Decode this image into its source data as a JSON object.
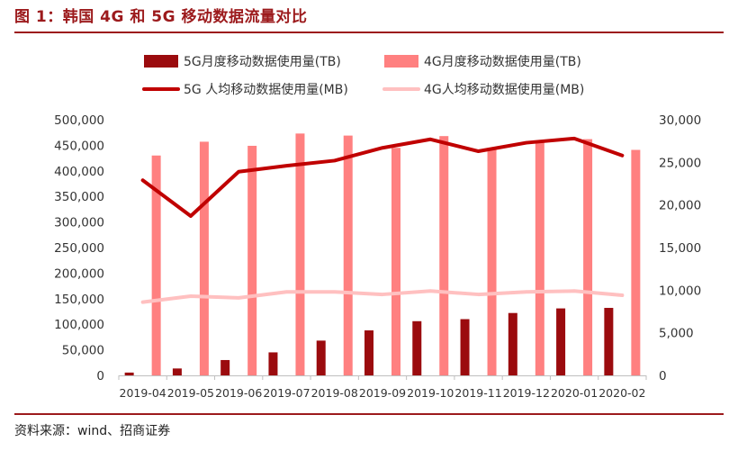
{
  "figure": {
    "title": "图 1：韩国 4G 和 5G 移动数据流量对比",
    "source": "资料来源：wind、招商证券"
  },
  "chart_data": {
    "type": "bar",
    "categories": [
      "2019-04",
      "2019-05",
      "2019-06",
      "2019-07",
      "2019-08",
      "2019-09",
      "2019-10",
      "2019-11",
      "2019-12",
      "2020-01",
      "2020-02"
    ],
    "y_left": {
      "min": 0,
      "max": 500000,
      "step": 50000,
      "ticks": [
        "0",
        "50,000",
        "100,000",
        "150,000",
        "200,000",
        "250,000",
        "300,000",
        "350,000",
        "400,000",
        "450,000",
        "500,000"
      ]
    },
    "y_right": {
      "min": 0,
      "max": 30000,
      "step": 5000,
      "ticks": [
        "0",
        "5,000",
        "10,000",
        "15,000",
        "20,000",
        "25,000",
        "30,000"
      ]
    },
    "grid": false,
    "legend_position": "top",
    "series": [
      {
        "name": "5G月度移动数据使用量(TB)",
        "kind": "bar",
        "axis": "left",
        "color": "#9B0B0E",
        "values": [
          5500,
          13500,
          30000,
          45000,
          68000,
          88000,
          106000,
          110000,
          122000,
          131000,
          132000
        ]
      },
      {
        "name": "4G月度移动数据使用量(TB)",
        "kind": "bar",
        "axis": "left",
        "color": "#FF8080",
        "values": [
          430000,
          457000,
          449000,
          473000,
          469000,
          445000,
          468000,
          445000,
          455000,
          462000,
          441000
        ]
      },
      {
        "name": "5G 人均移动数据使用量(MB)",
        "kind": "line",
        "axis": "right",
        "color": "#C00000",
        "values": [
          22900,
          18700,
          23900,
          24600,
          25200,
          26700,
          27700,
          26300,
          27300,
          27800,
          25800
        ]
      },
      {
        "name": "4G人均移动数据使用量(MB)",
        "kind": "line",
        "axis": "right",
        "color": "#FFC0C0",
        "values": [
          8600,
          9300,
          9100,
          9800,
          9800,
          9500,
          9900,
          9500,
          9800,
          9900,
          9400
        ]
      }
    ]
  }
}
